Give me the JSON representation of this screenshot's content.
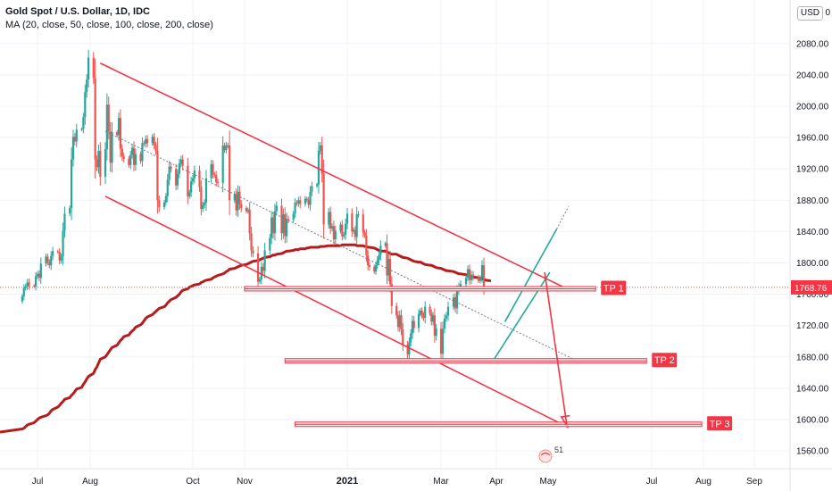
{
  "header": {
    "symbol_title": "Gold Spot / U.S. Dollar, 1D, IDC",
    "indicator": "MA (20, close, 50, close, 100, close, 200, close)",
    "scale_number": "2",
    "currency": "USD",
    "scale_zero": "0"
  },
  "badge_text": "51",
  "colors": {
    "up": "#26a69a",
    "down": "#ef5350",
    "ma": "#b71c1c",
    "drawing": "#f23645",
    "channel": "#22ab94",
    "trend": "#787b86",
    "label_bg": "#f23645",
    "price_label_bg": "#f23645"
  },
  "chart_data": {
    "type": "candlestick",
    "title": "Gold Spot / U.S. Dollar, 1D, IDC",
    "subtitle": "MA (20, close, 50, close, 100, close, 200, close)",
    "ylim": [
      1530,
      2120
    ],
    "y_ticks": [
      1560,
      1600,
      1640,
      1680,
      1720,
      1760,
      1800,
      1840,
      1880,
      1920,
      1960,
      2000,
      2040,
      2080
    ],
    "y_tick_labels": [
      "1560.00",
      "1600.00",
      "1640.00",
      "1680.00",
      "1720.00",
      "1760.00",
      "1800.00",
      "1840.00",
      "1880.00",
      "1920.00",
      "1960.00",
      "2000.00",
      "2040.00",
      "2080.00"
    ],
    "x_tick_labels": [
      "Jul",
      "Aug",
      "Oct",
      "Nov",
      "2021",
      "Mar",
      "Apr",
      "May",
      "Jul",
      "Aug",
      "Sep"
    ],
    "current_price": "1768.76",
    "candles": {
      "start": "2020-06-22",
      "interval": "1 trading day",
      "closes": [
        1757,
        1768,
        1770,
        1775,
        1771,
        1770,
        1783,
        1786,
        1781,
        1799,
        1808,
        1801,
        1797,
        1809,
        1815,
        1814,
        1803,
        1808,
        1841,
        1863,
        1870,
        1932,
        1961,
        1955,
        1970,
        1971,
        1986,
        2018,
        2034,
        2062,
        2036,
        1932,
        1922,
        1943,
        1910,
        1945,
        2002,
        1968,
        1928,
        1967,
        1963,
        1985,
        1946,
        1936,
        1933,
        1925,
        1938,
        1947,
        1925,
        1939,
        1930,
        1953,
        1952,
        1958,
        1953,
        1961,
        1950,
        1943,
        1880,
        1871,
        1877,
        1885,
        1906,
        1923,
        1920,
        1899,
        1914,
        1927,
        1932,
        1924,
        1885,
        1890,
        1904,
        1908,
        1918,
        1897,
        1869,
        1874,
        1877,
        1908,
        1926,
        1913,
        1912,
        1903,
        1902,
        1950,
        1944,
        1950,
        1950,
        1880,
        1888,
        1867,
        1891,
        1875,
        1870,
        1866,
        1868,
        1838,
        1816,
        1812,
        1776,
        1779,
        1795,
        1790,
        1816,
        1832,
        1858,
        1838,
        1866,
        1873,
        1838,
        1862,
        1834,
        1856,
        1855,
        1863,
        1877,
        1876,
        1880,
        1875,
        1882,
        1880,
        1874,
        1891,
        1898,
        1900,
        1943,
        1950,
        1914,
        1849,
        1865,
        1844,
        1847,
        1830,
        1841,
        1849,
        1834,
        1836,
        1850,
        1863,
        1840,
        1842,
        1833,
        1862,
        1862,
        1839,
        1835,
        1810,
        1797,
        1795,
        1789,
        1797,
        1804,
        1810,
        1822,
        1825,
        1784,
        1805,
        1773,
        1745,
        1733,
        1718,
        1733,
        1715,
        1696,
        1683,
        1699,
        1710,
        1726,
        1717,
        1735,
        1739,
        1733,
        1730,
        1744,
        1736,
        1725,
        1733,
        1707,
        1716,
        1684,
        1716,
        1729,
        1733,
        1744,
        1756,
        1742,
        1764,
        1770,
        1773,
        1781,
        1792,
        1778,
        1785,
        1782,
        1777,
        1781,
        1797,
        1768.76
      ],
      "up_color": "#26a69a",
      "down_color": "#ef5350"
    },
    "moving_average": {
      "name": "MA 200",
      "start": "2020-06-22",
      "values": [
        1588,
        1589,
        1591,
        1593,
        1594,
        1596,
        1598,
        1600,
        1602,
        1603,
        1605,
        1606,
        1608,
        1611,
        1613,
        1616,
        1618,
        1621,
        1623,
        1626,
        1628,
        1631,
        1633,
        1636,
        1639,
        1641,
        1645,
        1648,
        1652,
        1655,
        1659,
        1664,
        1667,
        1672,
        1677,
        1680,
        1683,
        1686,
        1689,
        1692,
        1695,
        1698,
        1701,
        1703,
        1706,
        1708,
        1711,
        1713,
        1715,
        1718,
        1721,
        1723,
        1726,
        1729,
        1731,
        1734,
        1736,
        1738,
        1740,
        1742,
        1744,
        1746,
        1749,
        1751,
        1753,
        1756,
        1758,
        1760,
        1763,
        1765,
        1767,
        1769,
        1770,
        1771,
        1772,
        1773,
        1775,
        1776,
        1777,
        1778,
        1779,
        1781,
        1782,
        1783,
        1784,
        1786,
        1787,
        1789,
        1790,
        1792,
        1793,
        1794,
        1795,
        1796,
        1797,
        1798,
        1799,
        1800,
        1801,
        1802,
        1803,
        1804,
        1805,
        1806,
        1807,
        1808,
        1809,
        1810,
        1810,
        1811,
        1812,
        1813,
        1814,
        1815,
        1815,
        1816,
        1817,
        1817,
        1817,
        1818,
        1818,
        1819,
        1819,
        1820,
        1820,
        1820,
        1820,
        1821,
        1821,
        1821,
        1822,
        1822,
        1822,
        1822,
        1822,
        1822,
        1823,
        1823,
        1823,
        1823,
        1823,
        1823,
        1823,
        1822,
        1822,
        1822,
        1821,
        1821,
        1820,
        1820,
        1819,
        1818,
        1817,
        1816,
        1815,
        1815,
        1814,
        1813,
        1812,
        1811,
        1811,
        1810,
        1809,
        1808,
        1807,
        1806,
        1805,
        1804,
        1803,
        1802,
        1801,
        1801,
        1800,
        1799,
        1798,
        1797,
        1797,
        1796,
        1795,
        1794,
        1793,
        1792,
        1791,
        1790,
        1790,
        1789,
        1788,
        1787,
        1786,
        1786,
        1785,
        1784,
        1783,
        1783,
        1782,
        1781,
        1780,
        1780,
        1779,
        1778,
        1777
      ]
    },
    "drawings": {
      "horizontal_levels": [
        {
          "label": "TP 1",
          "price": 1767
        },
        {
          "label": "TP 2",
          "price": 1675
        },
        {
          "label": "TP 3",
          "price": 1594
        }
      ],
      "descending_channel": {
        "upper": [
          [
            "2020-08-07",
            2055
          ],
          [
            "2021-05-14",
            1765
          ]
        ],
        "lower": [
          [
            "2020-08-10",
            1885
          ],
          [
            "2021-05-13",
            1590
          ]
        ]
      },
      "rising_channel": {
        "upper": [
          [
            "2021-04-06",
            1725
          ],
          [
            "2021-05-06",
            1843
          ]
        ],
        "lower": [
          [
            "2021-03-31",
            1678
          ],
          [
            "2021-05-02",
            1788
          ]
        ]
      },
      "midline": [
        [
          "2020-08-10",
          1968
        ],
        [
          "2021-05-17",
          1676
        ]
      ],
      "projection_arrow": [
        [
          "2021-04-29",
          1788
        ],
        [
          "2021-05-12",
          1593
        ]
      ]
    }
  }
}
